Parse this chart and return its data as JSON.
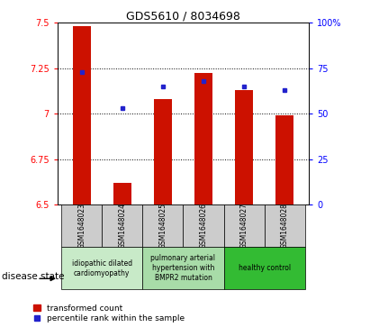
{
  "title": "GDS5610 / 8034698",
  "samples": [
    "GSM1648023",
    "GSM1648024",
    "GSM1648025",
    "GSM1648026",
    "GSM1648027",
    "GSM1648028"
  ],
  "red_values": [
    7.48,
    6.62,
    7.08,
    7.225,
    7.13,
    6.99
  ],
  "blue_values": [
    73,
    53,
    65,
    68,
    65,
    63
  ],
  "ylim_left": [
    6.5,
    7.5
  ],
  "ylim_right": [
    0,
    100
  ],
  "yticks_left": [
    6.5,
    6.75,
    7.0,
    7.25,
    7.5
  ],
  "yticks_right": [
    0,
    25,
    50,
    75,
    100
  ],
  "ytick_labels_left": [
    "6.5",
    "6.75",
    "7",
    "7.25",
    "7.5"
  ],
  "ytick_labels_right": [
    "0",
    "25",
    "50",
    "75",
    "100%"
  ],
  "hlines": [
    6.75,
    7.0,
    7.25
  ],
  "bar_color": "#CC1100",
  "dot_color": "#2222CC",
  "bar_bottom": 6.5,
  "disease_groups": [
    {
      "label": "idiopathic dilated\ncardiomyopathy",
      "indices": [
        0,
        1
      ],
      "color": "#c8eac8"
    },
    {
      "label": "pulmonary arterial\nhypertension with\nBMPR2 mutation",
      "indices": [
        2,
        3
      ],
      "color": "#a8dca8"
    },
    {
      "label": "healthy control",
      "indices": [
        4,
        5
      ],
      "color": "#33bb33"
    }
  ],
  "legend_red": "transformed count",
  "legend_blue": "percentile rank within the sample",
  "disease_state_label": "disease state"
}
